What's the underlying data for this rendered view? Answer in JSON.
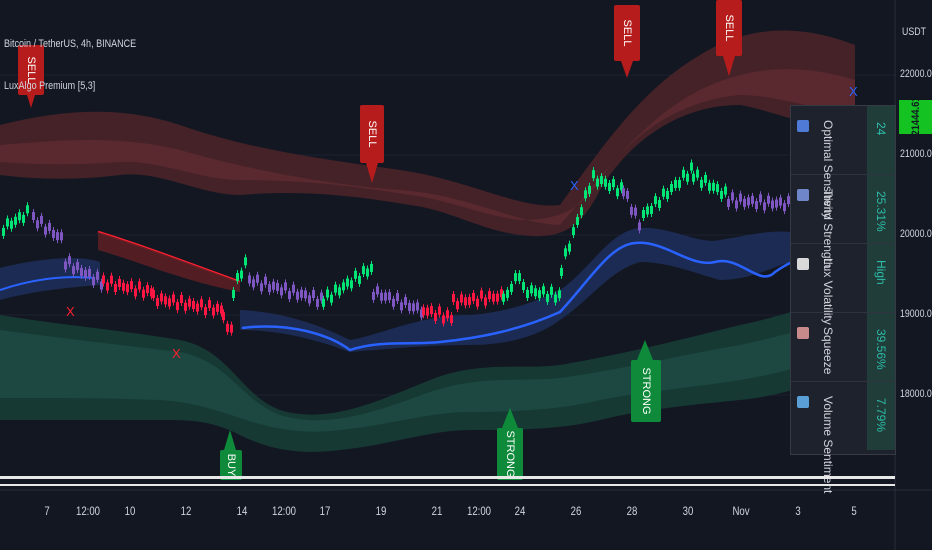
{
  "header": {
    "symbol_line": "Bitcoin / TetherUS, 4h, BINANCE",
    "indicator_line": "LuxAlgo Premium [5,3]"
  },
  "price_axis": {
    "currency": "USDT",
    "ticks": [
      "22000.00",
      "21000.00",
      "20000.00",
      "19000.00",
      "18000.00"
    ],
    "current_price": "21444.61",
    "current_price_color": "#14c322"
  },
  "time_axis": {
    "ticks": [
      "7",
      "12:00",
      "10",
      "12",
      "14",
      "12:00",
      "17",
      "19",
      "21",
      "12:00",
      "24",
      "26",
      "28",
      "30",
      "Nov",
      "3",
      "5"
    ]
  },
  "signals": [
    {
      "label": "SELL",
      "type": "sell"
    },
    {
      "label": "SELL",
      "type": "sell"
    },
    {
      "label": "SELL",
      "type": "sell"
    },
    {
      "label": "SELL",
      "type": "sell"
    },
    {
      "label": "BUY",
      "type": "buy"
    },
    {
      "label": "STRONG",
      "type": "buy"
    },
    {
      "label": "STRONG",
      "type": "buy"
    }
  ],
  "markers": [
    "X",
    "X",
    "X",
    "X"
  ],
  "dashboard": [
    {
      "label": "Optimal Sensitivity",
      "value": "24",
      "icon": "gear-icon",
      "icon_color": "#4f7bd6"
    },
    {
      "label": "Trend Strength",
      "value": "25.31%",
      "icon": "trend-icon",
      "icon_color": "#6f86c9"
    },
    {
      "label": "Lux Volatility",
      "value": "High",
      "icon": "lightning-icon",
      "icon_color": "#d9d9d9"
    },
    {
      "label": "Squeeze",
      "value": "39.56%",
      "icon": "squeeze-icon",
      "icon_color": "#c98a8a"
    },
    {
      "label": "Volume Sentiment",
      "value": "7.79%",
      "icon": "droplet-icon",
      "icon_color": "#5aa0d6"
    }
  ],
  "colors": {
    "background": "#131722",
    "sell": "#b71c1c",
    "buy": "#0e8a3a",
    "bull_candle": "#00e676",
    "bear_candle": "#ff1744",
    "neutral_candle": "#7e57c2"
  }
}
